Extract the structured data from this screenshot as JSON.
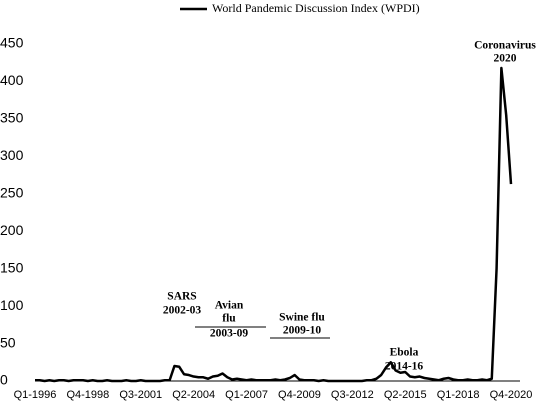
{
  "chart_data": {
    "type": "line",
    "categories": [
      "Q1-1996",
      null,
      null,
      null,
      null,
      null,
      null,
      null,
      null,
      null,
      null,
      "Q4-1998",
      null,
      null,
      null,
      null,
      null,
      null,
      null,
      null,
      null,
      null,
      "Q3-2001",
      null,
      null,
      null,
      null,
      null,
      null,
      null,
      null,
      null,
      null,
      "Q2-2004",
      null,
      null,
      null,
      null,
      null,
      null,
      null,
      null,
      null,
      null,
      "Q1-2007",
      null,
      null,
      null,
      null,
      null,
      null,
      null,
      null,
      null,
      null,
      "Q4-2009",
      null,
      null,
      null,
      null,
      null,
      null,
      null,
      null,
      null,
      null,
      "Q3-2012",
      null,
      null,
      null,
      null,
      null,
      null,
      null,
      null,
      null,
      null,
      "Q2-2015",
      null,
      null,
      null,
      null,
      null,
      null,
      null,
      null,
      null,
      null,
      "Q1-2018",
      null,
      null,
      null,
      null,
      null,
      null,
      null,
      null,
      null,
      null,
      "Q4-2020"
    ],
    "series": [
      {
        "name": "World Pandemic Discussion Index (WPDI)",
        "color": "#000000",
        "values": [
          1,
          1,
          0,
          1,
          0,
          1,
          1,
          0,
          1,
          1,
          1,
          0,
          1,
          0,
          0,
          1,
          0,
          0,
          0,
          1,
          0,
          0,
          1,
          0,
          0,
          0,
          0,
          1,
          1,
          20,
          19,
          9,
          8,
          6,
          5,
          5,
          3,
          6,
          7,
          10,
          5,
          2,
          3,
          2,
          1,
          2,
          1,
          1,
          1,
          1,
          2,
          1,
          2,
          4,
          8,
          2,
          1,
          1,
          1,
          0,
          1,
          0,
          0,
          0,
          0,
          0,
          0,
          0,
          0,
          1,
          1,
          3,
          8,
          18,
          25,
          14,
          11,
          12,
          6,
          5,
          6,
          4,
          3,
          2,
          1,
          3,
          4,
          2,
          1,
          1,
          2,
          1,
          1,
          2,
          1,
          3,
          150,
          418,
          355,
          263
        ]
      }
    ],
    "ylim": [
      0,
      450
    ],
    "yticks": [
      0,
      50,
      100,
      150,
      200,
      250,
      300,
      350,
      400,
      450
    ],
    "grid": false,
    "legend": "top",
    "annotations": [
      {
        "lines": [
          "SARS",
          "2002-03"
        ]
      },
      {
        "lines": [
          "Avian",
          "flu",
          "2003-09"
        ]
      },
      {
        "lines": [
          "Swine flu",
          "2009-10"
        ]
      },
      {
        "lines": [
          "Ebola",
          "2014-16"
        ]
      },
      {
        "lines": [
          "Coronavirus",
          "2020"
        ]
      }
    ]
  }
}
